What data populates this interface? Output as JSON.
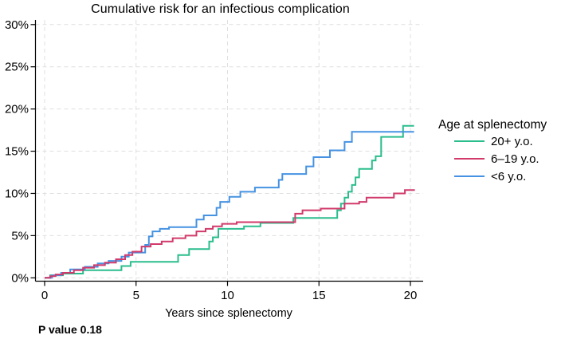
{
  "title": "Cumulative risk for an infectious complication",
  "x_axis_title": "Years since splenectomy",
  "p_value_note": "P value 0.18",
  "legend": {
    "title": "Age at splenectomy",
    "items": [
      {
        "label": "20+ y.o.",
        "color": "#2abd8d"
      },
      {
        "label": "6–19 y.o.",
        "color": "#d13a6a"
      },
      {
        "label": "<6 y.o.",
        "color": "#4592e2"
      }
    ]
  },
  "colors": {
    "grid": "#dfdfdf",
    "axis": "#000000",
    "green_series": "#2abd8d",
    "red_series": "#d13a6a",
    "blue_series": "#4592e2"
  },
  "chart_data": {
    "type": "line",
    "style": "step-after",
    "title": "Cumulative risk for an infectious complication",
    "xlabel": "Years since splenectomy",
    "ylabel": "",
    "xlim": [
      0,
      20
    ],
    "ylim_pct": [
      0,
      30
    ],
    "x_ticks": [
      0,
      5,
      10,
      15,
      20
    ],
    "y_ticks": [
      0,
      5,
      10,
      15,
      20,
      25,
      30
    ],
    "y_tick_suffix": "%",
    "grid": "both-dashed",
    "legend_position": "right",
    "annotation": "P value 0.18",
    "series": [
      {
        "id": "20plus",
        "name": "20+ y.o.",
        "color": "#2abd8d",
        "points": [
          [
            0,
            0
          ],
          [
            0.3,
            0.3
          ],
          [
            1.0,
            0.5
          ],
          [
            2.1,
            0.9
          ],
          [
            4.2,
            1.4
          ],
          [
            4.7,
            1.9
          ],
          [
            7.3,
            2.7
          ],
          [
            7.9,
            3.4
          ],
          [
            9.0,
            4.3
          ],
          [
            9.2,
            4.8
          ],
          [
            9.5,
            5.8
          ],
          [
            10.9,
            6.1
          ],
          [
            11.8,
            6.5
          ],
          [
            13.6,
            7.1
          ],
          [
            16.0,
            8.0
          ],
          [
            16.2,
            8.8
          ],
          [
            16.4,
            9.5
          ],
          [
            16.6,
            10.2
          ],
          [
            16.8,
            11.0
          ],
          [
            17.0,
            11.9
          ],
          [
            17.2,
            12.9
          ],
          [
            17.9,
            13.9
          ],
          [
            18.1,
            14.4
          ],
          [
            18.4,
            16.7
          ],
          [
            19.6,
            18.0
          ],
          [
            20.2,
            18.0
          ]
        ]
      },
      {
        "id": "6to19",
        "name": "6–19 y.o.",
        "color": "#d13a6a",
        "points": [
          [
            0,
            0
          ],
          [
            0.3,
            0.2
          ],
          [
            0.6,
            0.4
          ],
          [
            1.0,
            0.6
          ],
          [
            1.6,
            0.9
          ],
          [
            2.1,
            1.2
          ],
          [
            2.7,
            1.5
          ],
          [
            3.3,
            1.8
          ],
          [
            3.9,
            2.2
          ],
          [
            4.4,
            2.7
          ],
          [
            4.8,
            3.1
          ],
          [
            5.3,
            3.7
          ],
          [
            5.8,
            4.0
          ],
          [
            6.4,
            4.3
          ],
          [
            7.0,
            4.7
          ],
          [
            7.7,
            5.0
          ],
          [
            8.3,
            5.5
          ],
          [
            8.8,
            5.8
          ],
          [
            9.2,
            6.1
          ],
          [
            9.7,
            6.4
          ],
          [
            10.5,
            6.6
          ],
          [
            13.7,
            7.6
          ],
          [
            14.1,
            8.0
          ],
          [
            15.1,
            8.2
          ],
          [
            16.4,
            8.8
          ],
          [
            17.2,
            9.0
          ],
          [
            17.6,
            9.5
          ],
          [
            19.1,
            10.0
          ],
          [
            19.7,
            10.4
          ],
          [
            20.2,
            10.5
          ]
        ]
      },
      {
        "id": "under6",
        "name": "<6 y.o.",
        "color": "#4592e2",
        "points": [
          [
            0,
            0
          ],
          [
            0.4,
            0.3
          ],
          [
            0.9,
            0.6
          ],
          [
            1.4,
            1.0
          ],
          [
            2.2,
            1.3
          ],
          [
            2.9,
            1.7
          ],
          [
            3.5,
            2.0
          ],
          [
            4.2,
            2.5
          ],
          [
            4.6,
            3.0
          ],
          [
            5.5,
            3.9
          ],
          [
            5.7,
            4.9
          ],
          [
            5.9,
            5.5
          ],
          [
            6.3,
            5.8
          ],
          [
            6.8,
            6.0
          ],
          [
            8.3,
            6.9
          ],
          [
            8.7,
            7.4
          ],
          [
            9.4,
            8.3
          ],
          [
            9.6,
            9.0
          ],
          [
            10.1,
            9.6
          ],
          [
            10.7,
            10.2
          ],
          [
            11.5,
            10.7
          ],
          [
            12.8,
            11.6
          ],
          [
            13.0,
            12.3
          ],
          [
            14.3,
            13.2
          ],
          [
            14.7,
            14.3
          ],
          [
            15.6,
            15.1
          ],
          [
            16.4,
            16.1
          ],
          [
            16.8,
            17.3
          ],
          [
            20.2,
            17.3
          ]
        ]
      }
    ]
  }
}
